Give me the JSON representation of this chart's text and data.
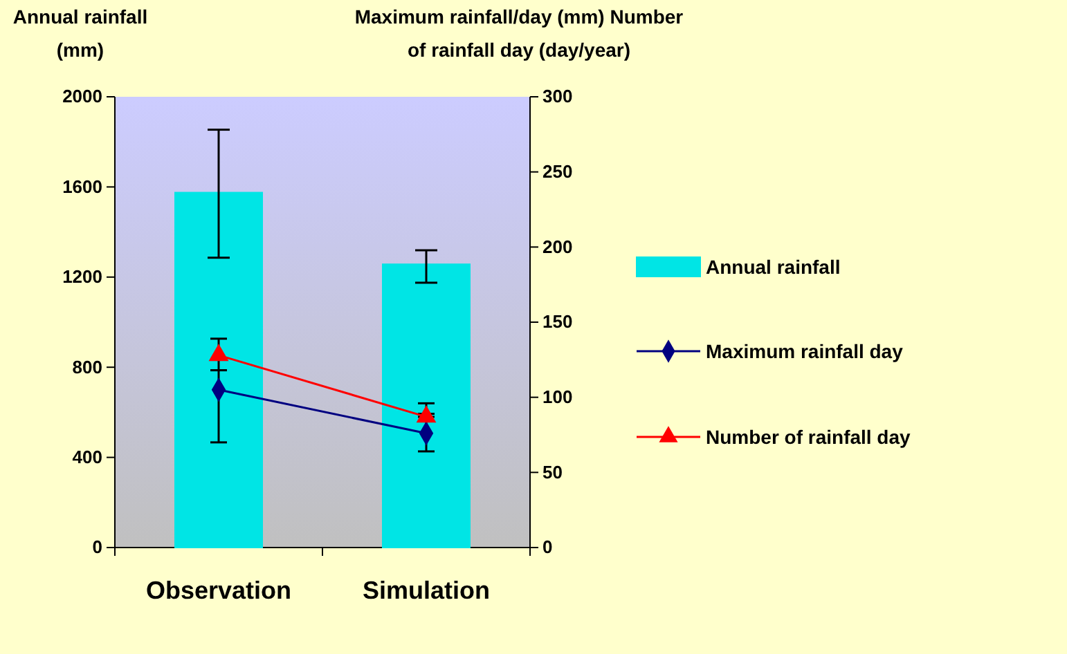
{
  "chart_data": {
    "type": "bar",
    "ylabel": "Annual rainfall (mm)",
    "y2label": "Maximum rainfall/day (mm) Number of rainfall day (day/year)",
    "categories": [
      "Observation",
      "Simulation"
    ],
    "ylim": [
      0,
      2000
    ],
    "yticks": [
      0,
      400,
      800,
      1200,
      1600,
      2000
    ],
    "y2lim": [
      0,
      300
    ],
    "y2ticks": [
      0,
      50,
      100,
      150,
      200,
      250,
      300
    ],
    "grid": false,
    "legend": "right",
    "series": [
      {
        "name": "Annual rainfall",
        "color": "#00e5e5",
        "values": [
          1575,
          1257
        ],
        "errors": [
          [
            1286,
            1854
          ],
          [
            1175,
            1319
          ]
        ]
      },
      {
        "name": "Maximum rainfall day",
        "type": "line",
        "axis": "y2",
        "color": "#000080",
        "marker": "diamond",
        "values": [
          105,
          76
        ],
        "errors": [
          [
            70,
            118
          ],
          [
            64,
            89
          ]
        ]
      },
      {
        "name": "Number of rainfall day",
        "type": "line",
        "axis": "y2",
        "color": "#ff0000",
        "marker": "triangle",
        "values": [
          128,
          87
        ],
        "errors": [
          [
            118,
            139
          ],
          [
            87,
            96
          ]
        ]
      }
    ]
  }
}
